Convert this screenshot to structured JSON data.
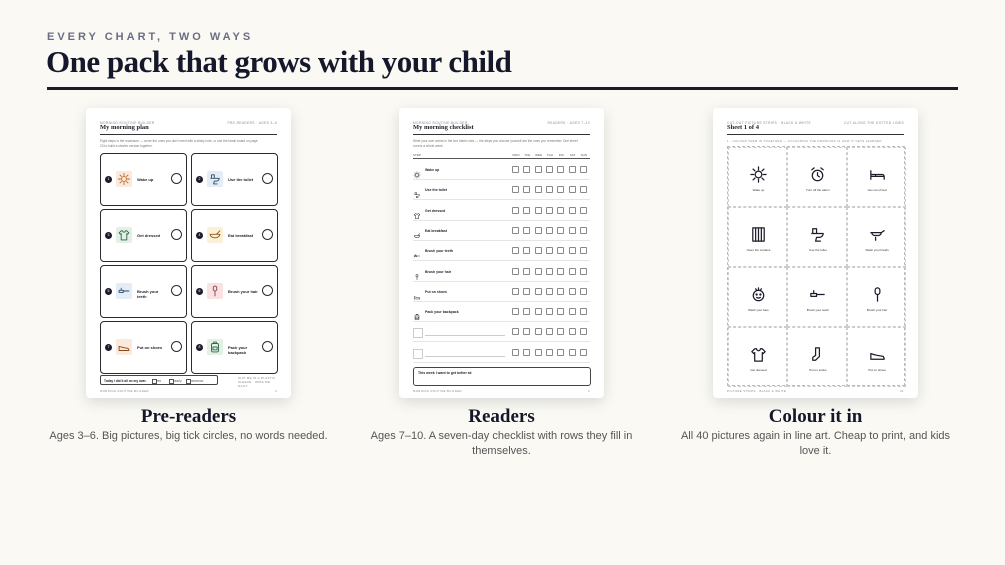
{
  "header": {
    "eyebrow": "EVERY CHART, TWO WAYS",
    "title": "One pack that grows with your child"
  },
  "cards": [
    {
      "sheet": {
        "brand": "MORNING ROUTINE BUILDER",
        "audience": "PRE-READERS · AGES 3–6",
        "title": "My morning plan",
        "intro": "Eight steps is the maximum — cover the ones you don't need with a sticky note, or use the blank board on page 23 to build a shorter version together.",
        "steps": [
          {
            "number": "1",
            "label": "Wake up"
          },
          {
            "number": "2",
            "label": "Use the toilet"
          },
          {
            "number": "3",
            "label": "Get dressed"
          },
          {
            "number": "4",
            "label": "Eat breakfast"
          },
          {
            "number": "5",
            "label": "Brush your teeth"
          },
          {
            "number": "6",
            "label": "Brush your hair"
          },
          {
            "number": "7",
            "label": "Put on shoes"
          },
          {
            "number": "8",
            "label": "Pack your backpack"
          }
        ],
        "footer_note": "Today I did it all on my own:",
        "footer_options": [
          "yes",
          "nearly",
          "tomorrow"
        ],
        "footer_tip": "SLIP ME IN A PLASTIC SLEEVE · WIPE ME DAILY",
        "page_footer": "MORNING ROUTINE BUILDER",
        "page_number": "3"
      },
      "caption": {
        "title": "Pre-readers",
        "text": "Ages 3–6. Big pictures, big tick circles, no words needed."
      }
    },
    {
      "sheet": {
        "brand": "MORNING ROUTINE BUILDER",
        "audience": "READERS · AGES 7–10",
        "title": "My morning checklist",
        "intro": "Write your own words in the two blank rows — the steps you choose yourself are the ones you remember. One sheet covers a whole week.",
        "step_header": "STEP",
        "days": [
          "MON",
          "TUE",
          "WED",
          "THU",
          "FRI",
          "SAT",
          "SUN"
        ],
        "steps": [
          "Wake up",
          "Use the toilet",
          "Get dressed",
          "Eat breakfast",
          "Brush your teeth",
          "Brush your hair",
          "Put on shoes",
          "Pack your backpack"
        ],
        "note": "This week I want to get better at:",
        "page_footer": "MORNING ROUTINE BUILDER",
        "page_number": "4"
      },
      "caption": {
        "title": "Readers",
        "text": "Ages 7–10. A seven-day checklist with rows they fill in themselves."
      }
    },
    {
      "sheet": {
        "brand": "CUT-OUT PICTURE STRIPS · BLACK & WHITE",
        "audience": "CUT ALONG THE DOTTED LINES",
        "title": "Sheet 1 of 4",
        "intro": "1 · COLOUR THEM IN TOGETHER — COLOURING THE DRAWINGS IS HOW IT GETS LEARNED",
        "pictures": [
          "Wake up",
          "Turn off the alarm",
          "Get out of bed",
          "Open the curtains",
          "Use the toilet",
          "Wash your hands",
          "Wash your face",
          "Brush your teeth",
          "Brush your hair",
          "Get dressed",
          "Put on socks",
          "Put on shoes"
        ],
        "page_footer": "PICTURE STRIPS · BLACK & WHITE",
        "page_number": "01"
      },
      "caption": {
        "title": "Colour it in",
        "text": "All 40 pictures again in line art. Cheap to print, and kids love it."
      }
    }
  ]
}
